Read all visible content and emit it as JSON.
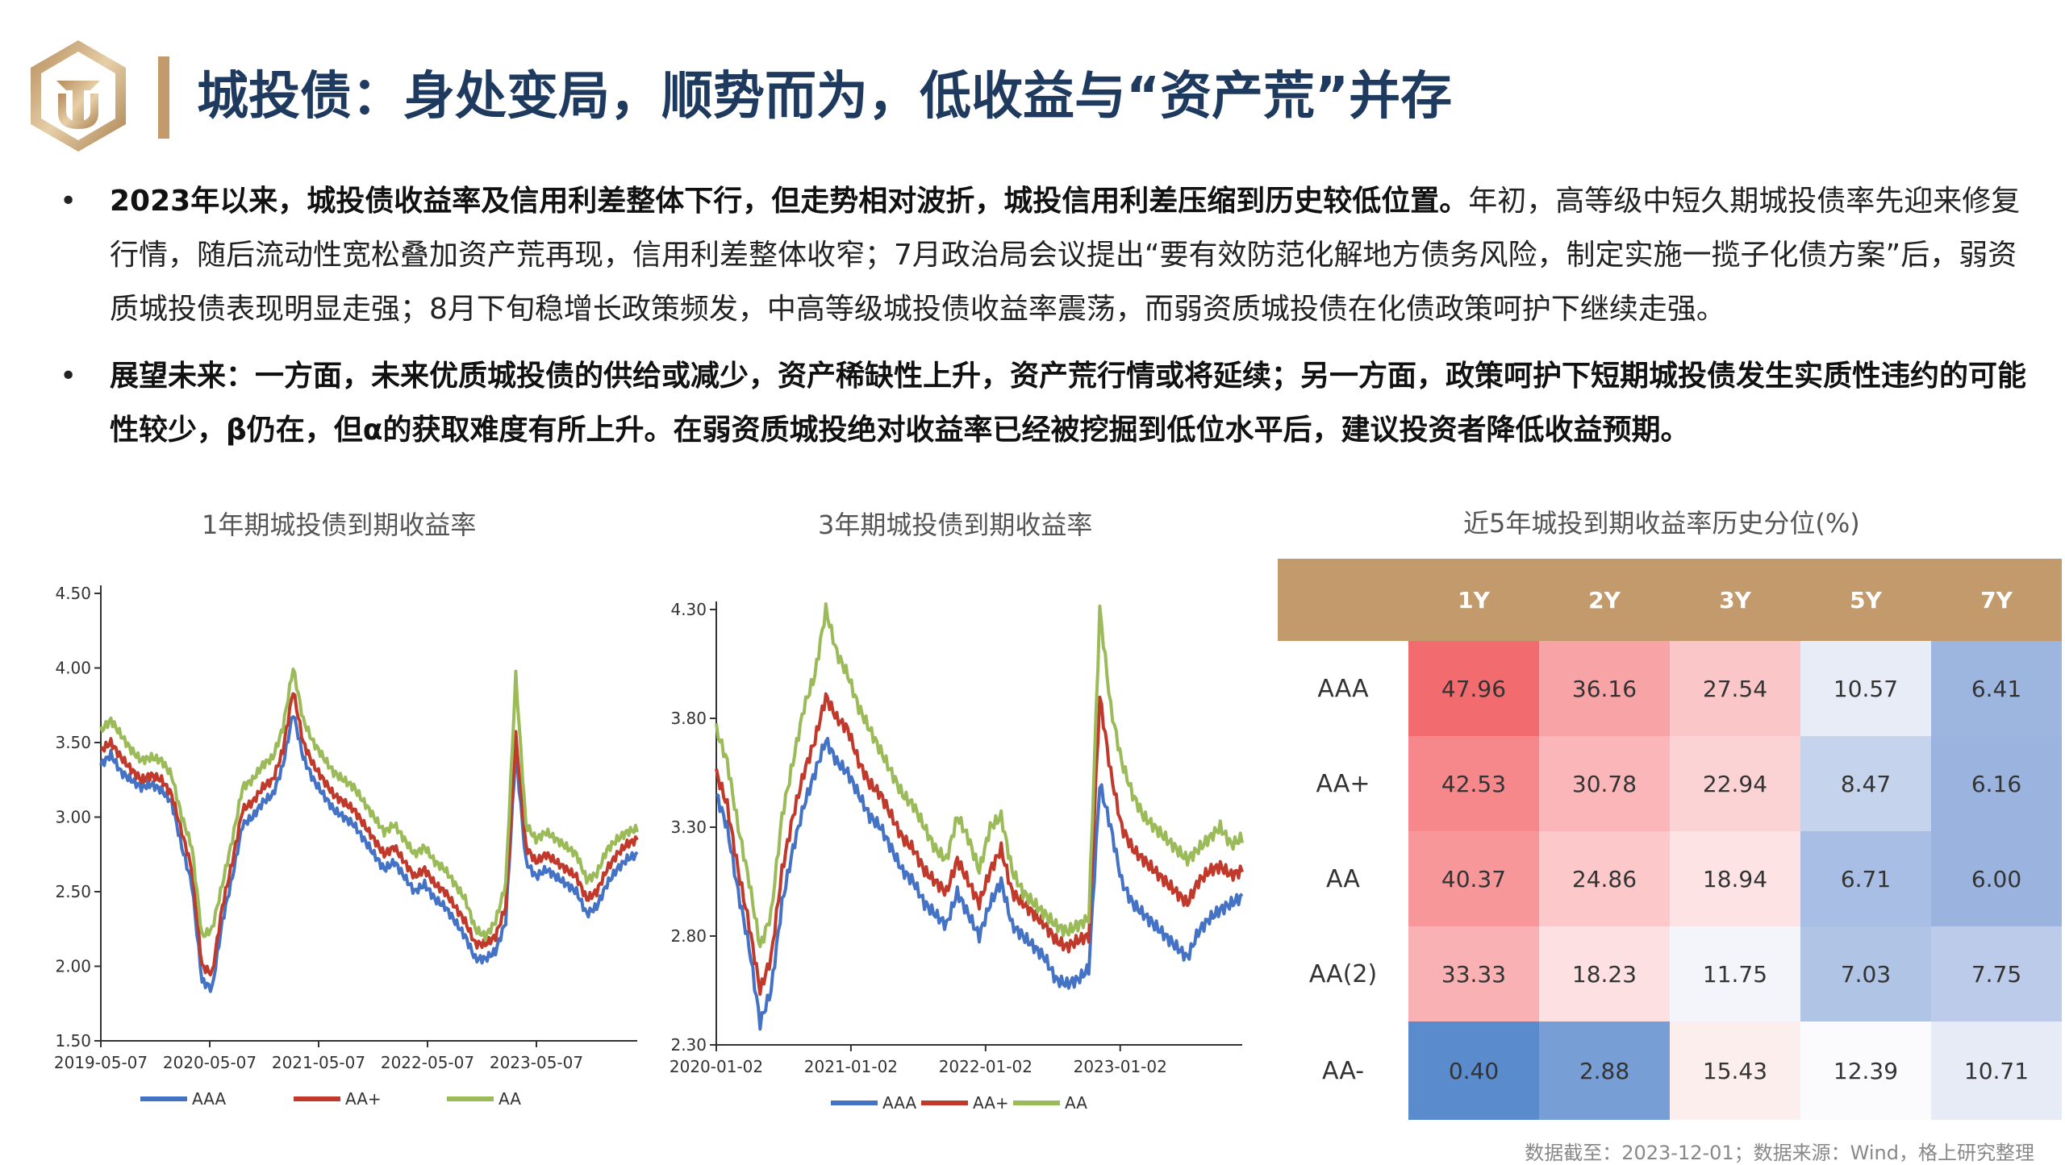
{
  "title": "城投债：身处变局，顺势而为，低收益与“资产荒”并存",
  "bullets": [
    {
      "bold": "2023年以来，城投债收益率及信用利差整体下行，但走势相对波折，城投信用利差压缩到历史较低位置。",
      "text": "年初，高等级中短久期城投债率先迎来修复行情，随后流动性宽松叠加资产荒再现，信用利差整体收窄；7月政治局会议提出“要有效防范化解地方债务风险，制定实施一揽子化债方案”后，弱资质城投债表现明显走强；8月下旬稳增长政策频发，中高等级城投债收益率震荡，而弱资质城投债在化债政策呵护下继续走强。"
    },
    {
      "bold": "展望未来：一方面，未来优质城投债的供给或减少，资产稀缺性上升，资产荒行情或将延续；另一方面，政策呵护下短期城投债发生实质性违约的可能性较少，β仍在，但α的获取难度有所上升。在弱资质城投绝对收益率已经被挖掘到低位水平后，建议投资者降低收益预期。",
      "text": ""
    }
  ],
  "chart_data": [
    {
      "type": "line",
      "title": "1年期城投债到期收益率",
      "y_ticks": [
        "4.50",
        "4.00",
        "3.50",
        "3.00",
        "2.50",
        "2.00",
        "1.50"
      ],
      "ylim": [
        1.5,
        4.5
      ],
      "x_ticks": [
        "2019-05-07",
        "2020-05-07",
        "2021-05-07",
        "2022-05-07",
        "2023-05-07"
      ],
      "x_tick_pos": [
        0.0,
        0.203,
        0.406,
        0.609,
        0.812
      ],
      "legend_position": "bottom",
      "series": [
        {
          "name": "AAA",
          "color": "#4472c4",
          "values": [
            3.35,
            3.42,
            3.3,
            3.25,
            3.2,
            3.22,
            3.18,
            3.1,
            2.8,
            2.55,
            1.9,
            1.85,
            2.3,
            2.6,
            2.95,
            3.0,
            3.1,
            3.15,
            3.35,
            3.7,
            3.4,
            3.25,
            3.15,
            3.05,
            3.0,
            2.95,
            2.85,
            2.75,
            2.65,
            2.7,
            2.6,
            2.5,
            2.55,
            2.45,
            2.4,
            2.3,
            2.2,
            2.05,
            2.05,
            2.1,
            2.3,
            3.45,
            2.7,
            2.6,
            2.65,
            2.6,
            2.55,
            2.5,
            2.35,
            2.4,
            2.55,
            2.65,
            2.72,
            2.75
          ]
        },
        {
          "name": "AA+",
          "color": "#c0392b",
          "values": [
            3.45,
            3.5,
            3.4,
            3.32,
            3.25,
            3.28,
            3.25,
            3.15,
            2.9,
            2.65,
            2.0,
            1.95,
            2.4,
            2.7,
            3.05,
            3.1,
            3.2,
            3.25,
            3.45,
            3.85,
            3.5,
            3.35,
            3.25,
            3.15,
            3.1,
            3.05,
            2.95,
            2.85,
            2.75,
            2.8,
            2.7,
            2.6,
            2.65,
            2.55,
            2.5,
            2.4,
            2.3,
            2.15,
            2.15,
            2.2,
            2.4,
            3.55,
            2.8,
            2.7,
            2.75,
            2.7,
            2.65,
            2.6,
            2.45,
            2.5,
            2.65,
            2.75,
            2.82,
            2.85
          ]
        },
        {
          "name": "AA",
          "color": "#9bbb59",
          "values": [
            3.58,
            3.65,
            3.55,
            3.45,
            3.38,
            3.4,
            3.38,
            3.28,
            3.0,
            2.8,
            2.2,
            2.25,
            2.55,
            2.85,
            3.2,
            3.25,
            3.35,
            3.4,
            3.6,
            4.0,
            3.65,
            3.5,
            3.4,
            3.3,
            3.25,
            3.2,
            3.1,
            3.0,
            2.9,
            2.95,
            2.85,
            2.75,
            2.8,
            2.7,
            2.65,
            2.55,
            2.45,
            2.25,
            2.2,
            2.3,
            2.55,
            3.95,
            2.95,
            2.85,
            2.9,
            2.85,
            2.8,
            2.75,
            2.58,
            2.62,
            2.78,
            2.85,
            2.9,
            2.92
          ]
        }
      ]
    },
    {
      "type": "line",
      "title": "3年期城投债到期收益率",
      "y_ticks": [
        "4.30",
        "3.80",
        "3.30",
        "2.80",
        "2.30"
      ],
      "ylim": [
        2.3,
        4.3
      ],
      "x_ticks": [
        "2020-01-02",
        "2021-01-02",
        "2022-01-02",
        "2023-01-02"
      ],
      "x_tick_pos": [
        0.0,
        0.256,
        0.512,
        0.768
      ],
      "legend_position": "bottom",
      "series": [
        {
          "name": "AAA",
          "color": "#4472c4",
          "values": [
            3.45,
            3.3,
            3.0,
            2.75,
            2.4,
            2.55,
            2.95,
            3.2,
            3.4,
            3.55,
            3.7,
            3.6,
            3.55,
            3.45,
            3.35,
            3.3,
            3.2,
            3.1,
            3.05,
            2.95,
            2.9,
            2.85,
            3.0,
            2.9,
            2.8,
            2.95,
            3.05,
            2.85,
            2.8,
            2.75,
            2.7,
            2.6,
            2.58,
            2.6,
            2.65,
            3.5,
            3.3,
            3.05,
            2.95,
            2.9,
            2.85,
            2.8,
            2.75,
            2.7,
            2.82,
            2.88,
            2.92,
            2.95,
            2.98
          ]
        },
        {
          "name": "AA+",
          "color": "#c0392b",
          "values": [
            3.55,
            3.4,
            3.1,
            2.85,
            2.55,
            2.7,
            3.1,
            3.35,
            3.55,
            3.7,
            3.9,
            3.8,
            3.75,
            3.6,
            3.5,
            3.45,
            3.35,
            3.25,
            3.2,
            3.1,
            3.05,
            3.0,
            3.15,
            3.05,
            2.95,
            3.1,
            3.2,
            3.0,
            2.95,
            2.9,
            2.85,
            2.78,
            2.75,
            2.78,
            2.8,
            3.9,
            3.55,
            3.3,
            3.2,
            3.15,
            3.1,
            3.05,
            3.0,
            2.95,
            3.05,
            3.1,
            3.12,
            3.08,
            3.1
          ]
        },
        {
          "name": "AA",
          "color": "#9bbb59",
          "values": [
            3.75,
            3.6,
            3.3,
            3.05,
            2.75,
            2.9,
            3.35,
            3.6,
            3.85,
            4.0,
            4.3,
            4.1,
            4.0,
            3.85,
            3.75,
            3.65,
            3.55,
            3.45,
            3.4,
            3.3,
            3.2,
            3.15,
            3.35,
            3.25,
            3.1,
            3.3,
            3.35,
            3.1,
            3.0,
            2.95,
            2.9,
            2.85,
            2.82,
            2.85,
            2.88,
            4.3,
            3.85,
            3.6,
            3.45,
            3.35,
            3.3,
            3.25,
            3.2,
            3.15,
            3.2,
            3.25,
            3.3,
            3.22,
            3.25
          ]
        }
      ]
    },
    {
      "type": "table",
      "title": "近5年城投到期收益率历史分位(%)",
      "columns": [
        "1Y",
        "2Y",
        "3Y",
        "5Y",
        "7Y"
      ],
      "rows": [
        {
          "label": "AAA",
          "values": [
            "47.96",
            "36.16",
            "27.54",
            "10.57",
            "6.41"
          ],
          "colors": [
            "#f26b6f",
            "#f8a3a6",
            "#fbc6c8",
            "#e8ecf6",
            "#9db6df"
          ]
        },
        {
          "label": "AA+",
          "values": [
            "42.53",
            "30.78",
            "22.94",
            "8.47",
            "6.16"
          ],
          "colors": [
            "#f6888b",
            "#fab6b8",
            "#fcd3d5",
            "#c6d3ec",
            "#9ab4df"
          ]
        },
        {
          "label": "AA",
          "values": [
            "40.37",
            "24.86",
            "18.94",
            "6.71",
            "6.00"
          ],
          "colors": [
            "#f7979a",
            "#fcc8ca",
            "#fde3e4",
            "#a9bee4",
            "#9ab4df"
          ]
        },
        {
          "label": "AA(2)",
          "values": [
            "33.33",
            "18.23",
            "11.75",
            "7.03",
            "7.75"
          ],
          "colors": [
            "#fab1b3",
            "#fde1e2",
            "#f4f5fb",
            "#b0c4e6",
            "#bccbe9"
          ]
        },
        {
          "label": "AA-",
          "values": [
            "0.40",
            "2.88",
            "15.43",
            "12.39",
            "10.71"
          ],
          "colors": [
            "#5a8bcd",
            "#789fd5",
            "#fdeeee",
            "#fbfbfd",
            "#e6ebf6"
          ]
        }
      ]
    }
  ],
  "source": "数据截至：2023-12-01；数据来源：Wind，格上研究整理"
}
